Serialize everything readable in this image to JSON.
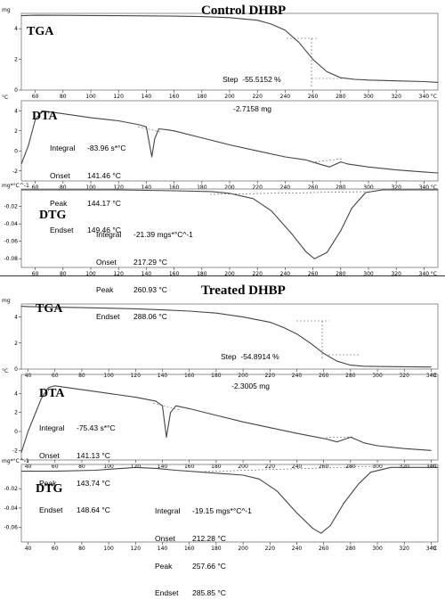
{
  "chart_data": [
    {
      "type": "line",
      "title": "Control DHBP",
      "panels": [
        {
          "label": "TGA",
          "yunit": "mg",
          "xunit": "°C",
          "xlim": [
            50,
            350
          ],
          "ylim": [
            0,
            5
          ],
          "xticks": [
            60,
            80,
            100,
            120,
            140,
            160,
            180,
            200,
            220,
            240,
            260,
            280,
            300,
            320,
            340
          ],
          "yticks": [
            0,
            2,
            4
          ],
          "x": [
            50,
            60,
            80,
            100,
            120,
            140,
            160,
            180,
            200,
            220,
            230,
            240,
            250,
            260,
            270,
            280,
            290,
            300,
            320,
            340,
            350
          ],
          "y": [
            4.85,
            4.88,
            4.87,
            4.86,
            4.85,
            4.84,
            4.82,
            4.79,
            4.72,
            4.55,
            4.3,
            3.9,
            3.1,
            2.0,
            1.2,
            0.8,
            0.7,
            0.65,
            0.6,
            0.55,
            0.5
          ],
          "annotation": {
            "label": "Step",
            "value": "-55.5152 %",
            "value2": "-2.7158 mg"
          }
        },
        {
          "label": "DTA",
          "yunit": "°C",
          "xunit": "°C",
          "xlim": [
            50,
            350
          ],
          "ylim": [
            -3,
            5
          ],
          "xticks": [
            60,
            80,
            100,
            120,
            140,
            160,
            180,
            200,
            220,
            240,
            260,
            280,
            300,
            320,
            340
          ],
          "yticks": [
            -2,
            0,
            2,
            4
          ],
          "x": [
            50,
            55,
            60,
            65,
            80,
            100,
            120,
            135,
            140,
            144,
            146,
            149,
            155,
            160,
            180,
            200,
            220,
            240,
            255,
            262,
            272,
            280,
            285,
            300,
            320,
            340,
            350
          ],
          "y": [
            -1.3,
            0.5,
            3.1,
            4.0,
            3.7,
            3.3,
            3.0,
            2.6,
            2.4,
            -0.6,
            1.2,
            2.2,
            2.1,
            2.0,
            1.3,
            0.6,
            0.0,
            -0.6,
            -0.9,
            -1.2,
            -1.6,
            -1.1,
            -1.3,
            -1.6,
            -1.9,
            -2.1,
            -2.2
          ],
          "annotation": [
            {
              "k": "Integral",
              "v": "-83.96 s*°C"
            },
            {
              "k": "Onset",
              "v": "141.46 °C"
            },
            {
              "k": "Peak",
              "v": "144.17 °C"
            },
            {
              "k": "Endset",
              "v": "149.46 °C"
            }
          ]
        },
        {
          "label": "DTG",
          "yunit": "mg*°C^-1",
          "xunit": "°C",
          "xlim": [
            50,
            350
          ],
          "ylim": [
            -0.09,
            0.0
          ],
          "xticks": [
            60,
            80,
            100,
            120,
            140,
            160,
            180,
            200,
            220,
            240,
            260,
            280,
            300,
            320,
            340
          ],
          "yticks": [
            -0.02,
            -0.04,
            -0.06,
            -0.08
          ],
          "x": [
            50,
            80,
            120,
            160,
            187,
            200,
            217,
            230,
            245,
            255,
            261,
            270,
            280,
            288,
            298,
            310,
            330,
            350
          ],
          "y": [
            -0.001,
            -0.001,
            -0.001,
            -0.002,
            -0.003,
            -0.005,
            -0.011,
            -0.025,
            -0.052,
            -0.072,
            -0.08,
            -0.073,
            -0.048,
            -0.022,
            -0.004,
            -0.001,
            -0.001,
            -0.001
          ],
          "annotation": [
            {
              "k": "Integral",
              "v": "-21.39 mgs*°C^-1"
            },
            {
              "k": "Onset",
              "v": "217.29 °C"
            },
            {
              "k": "Peak",
              "v": "260.93 °C"
            },
            {
              "k": "Endset",
              "v": "288.06 °C"
            }
          ]
        }
      ]
    },
    {
      "type": "line",
      "title": "Treated DHBP",
      "panels": [
        {
          "label": "TGA",
          "yunit": "mg",
          "xunit": "°C",
          "xlim": [
            35,
            345
          ],
          "ylim": [
            0,
            5
          ],
          "xticks": [
            40,
            60,
            80,
            100,
            120,
            140,
            160,
            180,
            200,
            220,
            240,
            260,
            280,
            300,
            320,
            340
          ],
          "yticks": [
            0,
            2,
            4
          ],
          "x": [
            35,
            40,
            60,
            80,
            100,
            120,
            140,
            160,
            180,
            200,
            220,
            230,
            240,
            250,
            260,
            270,
            280,
            290,
            300,
            320,
            340
          ],
          "y": [
            4.82,
            4.8,
            4.75,
            4.72,
            4.68,
            4.63,
            4.55,
            4.45,
            4.3,
            4.0,
            3.6,
            3.2,
            2.7,
            2.0,
            1.2,
            0.6,
            0.3,
            0.22,
            0.2,
            0.18,
            0.16
          ],
          "annotation": {
            "label": "Step",
            "value": "-54.8914 %",
            "value2": "-2.3005 mg"
          }
        },
        {
          "label": "DTA",
          "yunit": "°C",
          "xunit": "°C",
          "xlim": [
            35,
            345
          ],
          "ylim": [
            -3,
            6
          ],
          "xticks": [
            40,
            60,
            80,
            100,
            120,
            140,
            160,
            180,
            200,
            220,
            240,
            260,
            280,
            300,
            320,
            340
          ],
          "yticks": [
            -2,
            0,
            2,
            4
          ],
          "x": [
            35,
            40,
            50,
            55,
            60,
            80,
            100,
            120,
            135,
            140,
            143,
            146,
            150,
            160,
            180,
            200,
            220,
            240,
            255,
            262,
            270,
            280,
            290,
            300,
            320,
            340
          ],
          "y": [
            -2.2,
            0.0,
            3.5,
            4.6,
            4.8,
            4.4,
            4.0,
            3.6,
            3.2,
            2.7,
            -0.6,
            2.0,
            2.7,
            2.4,
            1.7,
            1.0,
            0.4,
            -0.2,
            -0.6,
            -0.8,
            -1.1,
            -0.6,
            -1.2,
            -1.5,
            -1.8,
            -2.0
          ],
          "annotation": [
            {
              "k": "Integral",
              "v": "-75.43 s*°C"
            },
            {
              "k": "Onset",
              "v": "141.13 °C"
            },
            {
              "k": "Peak",
              "v": "143.74 °C"
            },
            {
              "k": "Endset",
              "v": "148.64 °C"
            }
          ]
        },
        {
          "label": "DTG",
          "yunit": "mg*°C^-1",
          "xunit": "°C",
          "xlim": [
            35,
            345
          ],
          "ylim": [
            -0.075,
            0.005
          ],
          "xticks": [
            40,
            60,
            80,
            100,
            120,
            140,
            160,
            180,
            200,
            220,
            240,
            260,
            280,
            300,
            320,
            340
          ],
          "yticks": [
            -0.02,
            -0.04,
            -0.06
          ],
          "x": [
            35,
            60,
            90,
            110,
            120,
            135,
            150,
            170,
            200,
            212,
            225,
            240,
            252,
            258,
            265,
            275,
            286,
            295,
            310,
            330,
            345
          ],
          "y": [
            -0.002,
            -0.002,
            -0.001,
            0.001,
            0.002,
            0.001,
            -0.001,
            -0.003,
            -0.006,
            -0.01,
            -0.022,
            -0.045,
            -0.061,
            -0.066,
            -0.058,
            -0.035,
            -0.015,
            -0.003,
            0.002,
            0.002,
            0.002
          ],
          "annotation": [
            {
              "k": "Integral",
              "v": "-19.15 mgs*°C^-1"
            },
            {
              "k": "Onset",
              "v": "212.28 °C"
            },
            {
              "k": "Peak",
              "v": "257.66 °C"
            },
            {
              "k": "Endset",
              "v": "285.85 °C"
            }
          ]
        }
      ]
    }
  ]
}
